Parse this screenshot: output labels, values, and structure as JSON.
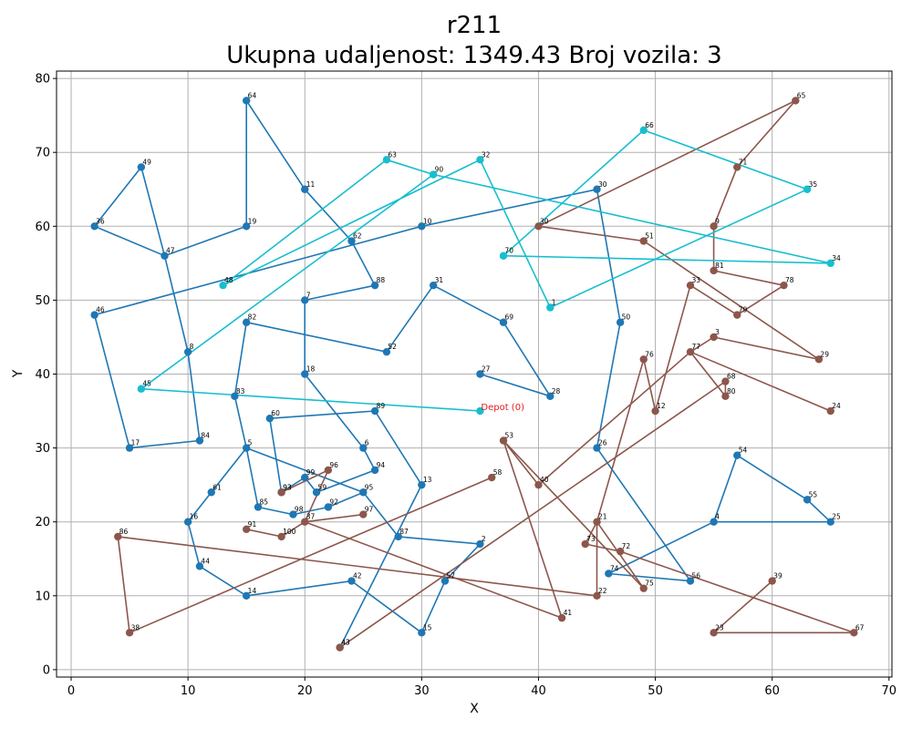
{
  "chart_data": {
    "type": "scatter",
    "title": "r211",
    "subtitle": "Ukupna udaljenost: 1349.43    Broj vozila: 3",
    "xlabel": "X",
    "ylabel": "Y",
    "xlim": [
      -1.25,
      70.25
    ],
    "ylim": [
      -1,
      81
    ],
    "xticks": [
      0,
      10,
      20,
      30,
      40,
      50,
      60,
      70
    ],
    "yticks": [
      0,
      10,
      20,
      30,
      40,
      50,
      60,
      70,
      80
    ],
    "grid": true,
    "depot": {
      "label": "Depot (0)",
      "x": 35,
      "y": 35,
      "color": "#17becf"
    },
    "series": [
      {
        "color": "#1f77b4",
        "route": [
          {
            "id": "30",
            "x": 45,
            "y": 65
          },
          {
            "id": "10",
            "x": 30,
            "y": 60
          },
          {
            "id": "46",
            "x": 2,
            "y": 48
          },
          {
            "id": "17",
            "x": 5,
            "y": 30
          },
          {
            "id": "84",
            "x": 11,
            "y": 31
          },
          {
            "id": "8",
            "x": 10,
            "y": 43
          },
          {
            "id": "47",
            "x": 8,
            "y": 56
          },
          {
            "id": "36",
            "x": 2,
            "y": 60
          },
          {
            "id": "49",
            "x": 6,
            "y": 68
          },
          {
            "id": "47",
            "x": 8,
            "y": 56
          },
          {
            "id": "19",
            "x": 15,
            "y": 60
          },
          {
            "id": "64",
            "x": 15,
            "y": 77
          },
          {
            "id": "11",
            "x": 20,
            "y": 65
          },
          {
            "id": "62",
            "x": 24,
            "y": 58
          },
          {
            "id": "88",
            "x": 26,
            "y": 52
          },
          {
            "id": "7",
            "x": 20,
            "y": 50
          },
          {
            "id": "18",
            "x": 20,
            "y": 40
          },
          {
            "id": "6",
            "x": 25,
            "y": 30
          },
          {
            "id": "94",
            "x": 26,
            "y": 27
          },
          {
            "id": "59",
            "x": 21,
            "y": 24
          },
          {
            "id": "99",
            "x": 20,
            "y": 26
          },
          {
            "id": "93",
            "x": 18,
            "y": 24
          },
          {
            "id": "60",
            "x": 17,
            "y": 34
          },
          {
            "id": "89",
            "x": 26,
            "y": 35
          },
          {
            "id": "13",
            "x": 30,
            "y": 25
          },
          {
            "id": "43",
            "x": 23,
            "y": 3
          }
        ]
      },
      {
        "color": "#1f77b4",
        "route": [
          {
            "id": "27",
            "x": 35,
            "y": 40
          },
          {
            "id": "28",
            "x": 41,
            "y": 37
          },
          {
            "id": "69",
            "x": 37,
            "y": 47
          },
          {
            "id": "31",
            "x": 31,
            "y": 52
          },
          {
            "id": "52",
            "x": 27,
            "y": 43
          },
          {
            "id": "82",
            "x": 15,
            "y": 47
          },
          {
            "id": "83",
            "x": 14,
            "y": 37
          },
          {
            "id": "5",
            "x": 15,
            "y": 30
          },
          {
            "id": "85",
            "x": 16,
            "y": 22
          },
          {
            "id": "98",
            "x": 19,
            "y": 21
          },
          {
            "id": "92",
            "x": 22,
            "y": 22
          },
          {
            "id": "95",
            "x": 25,
            "y": 24
          },
          {
            "id": "87",
            "x": 28,
            "y": 18
          },
          {
            "id": "2",
            "x": 35,
            "y": 17
          },
          {
            "id": "57",
            "x": 32,
            "y": 12
          },
          {
            "id": "15",
            "x": 30,
            "y": 5
          },
          {
            "id": "42",
            "x": 24,
            "y": 12
          },
          {
            "id": "14",
            "x": 15,
            "y": 10
          },
          {
            "id": "44",
            "x": 11,
            "y": 14
          },
          {
            "id": "16",
            "x": 10,
            "y": 20
          },
          {
            "id": "61",
            "x": 12,
            "y": 24
          },
          {
            "id": "5",
            "x": 15,
            "y": 30
          },
          {
            "id": "95",
            "x": 25,
            "y": 24
          }
        ]
      },
      {
        "color": "#1f77b4",
        "route": [
          {
            "id": "30",
            "x": 45,
            "y": 65
          },
          {
            "id": "50",
            "x": 47,
            "y": 47
          },
          {
            "id": "26",
            "x": 45,
            "y": 30
          },
          {
            "id": "56",
            "x": 53,
            "y": 12
          },
          {
            "id": "74",
            "x": 46,
            "y": 13
          },
          {
            "id": "4",
            "x": 55,
            "y": 20
          },
          {
            "id": "54",
            "x": 57,
            "y": 29
          },
          {
            "id": "55",
            "x": 63,
            "y": 23
          },
          {
            "id": "25",
            "x": 65,
            "y": 20
          },
          {
            "id": "4",
            "x": 55,
            "y": 20
          }
        ]
      },
      {
        "color": "#8c564b",
        "route": [
          {
            "id": "65",
            "x": 62,
            "y": 77
          },
          {
            "id": "71",
            "x": 57,
            "y": 68
          },
          {
            "id": "9",
            "x": 55,
            "y": 60
          },
          {
            "id": "81",
            "x": 55,
            "y": 54
          },
          {
            "id": "78",
            "x": 61,
            "y": 52
          },
          {
            "id": "79",
            "x": 57,
            "y": 48
          },
          {
            "id": "33",
            "x": 53,
            "y": 52
          },
          {
            "id": "12",
            "x": 50,
            "y": 35
          },
          {
            "id": "76",
            "x": 49,
            "y": 42
          },
          {
            "id": "21",
            "x": 45,
            "y": 20
          },
          {
            "id": "73",
            "x": 44,
            "y": 17
          },
          {
            "id": "72",
            "x": 47,
            "y": 16
          },
          {
            "id": "67",
            "x": 67,
            "y": 5
          },
          {
            "id": "23",
            "x": 55,
            "y": 5
          },
          {
            "id": "39",
            "x": 60,
            "y": 12
          }
        ]
      },
      {
        "color": "#8c564b",
        "route": [
          {
            "id": "30",
            "x": 40,
            "y": 60
          },
          {
            "id": "65",
            "x": 62,
            "y": 77
          }
        ]
      },
      {
        "color": "#8c564b",
        "route": [
          {
            "id": "30",
            "x": 40,
            "y": 60
          },
          {
            "id": "51",
            "x": 49,
            "y": 58
          },
          {
            "id": "29",
            "x": 64,
            "y": 42
          },
          {
            "id": "3",
            "x": 55,
            "y": 45
          },
          {
            "id": "77",
            "x": 53,
            "y": 43
          },
          {
            "id": "24",
            "x": 65,
            "y": 35
          }
        ]
      },
      {
        "color": "#8c564b",
        "route": [
          {
            "id": "40",
            "x": 40,
            "y": 25
          },
          {
            "id": "77",
            "x": 53,
            "y": 43
          },
          {
            "id": "80",
            "x": 56,
            "y": 37
          },
          {
            "id": "68",
            "x": 56,
            "y": 39
          },
          {
            "id": "43",
            "x": 23,
            "y": 3
          }
        ]
      },
      {
        "color": "#8c564b",
        "route": [
          {
            "id": "75",
            "x": 49,
            "y": 11
          },
          {
            "id": "53",
            "x": 37,
            "y": 31
          },
          {
            "id": "40",
            "x": 40,
            "y": 25
          }
        ]
      },
      {
        "color": "#8c564b",
        "route": [
          {
            "id": "53",
            "x": 37,
            "y": 31
          },
          {
            "id": "41",
            "x": 42,
            "y": 7
          },
          {
            "id": "37",
            "x": 20,
            "y": 20
          },
          {
            "id": "96",
            "x": 22,
            "y": 27
          },
          {
            "id": "93",
            "x": 18,
            "y": 24
          }
        ]
      },
      {
        "color": "#8c564b",
        "route": [
          {
            "id": "97",
            "x": 25,
            "y": 21
          },
          {
            "id": "37",
            "x": 20,
            "y": 20
          },
          {
            "id": "100",
            "x": 18,
            "y": 18
          },
          {
            "id": "91",
            "x": 15,
            "y": 19
          }
        ]
      },
      {
        "color": "#8c564b",
        "route": [
          {
            "id": "58",
            "x": 36,
            "y": 26
          },
          {
            "id": "38",
            "x": 5,
            "y": 5
          },
          {
            "id": "86",
            "x": 4,
            "y": 18
          },
          {
            "id": "22",
            "x": 45,
            "y": 10
          },
          {
            "id": "21",
            "x": 45,
            "y": 20
          },
          {
            "id": "75",
            "x": 49,
            "y": 11
          }
        ]
      },
      {
        "color": "#17becf",
        "route": [
          {
            "id": "0",
            "x": 35,
            "y": 35
          },
          {
            "id": "45",
            "x": 6,
            "y": 38
          },
          {
            "id": "90",
            "x": 31,
            "y": 67
          },
          {
            "id": "34",
            "x": 65,
            "y": 55
          },
          {
            "id": "70",
            "x": 37,
            "y": 56
          },
          {
            "id": "66",
            "x": 49,
            "y": 73
          },
          {
            "id": "35",
            "x": 63,
            "y": 65
          },
          {
            "id": "1",
            "x": 41,
            "y": 49
          },
          {
            "id": "32",
            "x": 35,
            "y": 69
          },
          {
            "id": "48",
            "x": 13,
            "y": 52
          },
          {
            "id": "63",
            "x": 27,
            "y": 69
          },
          {
            "id": "90",
            "x": 31,
            "y": 67
          }
        ]
      }
    ]
  }
}
